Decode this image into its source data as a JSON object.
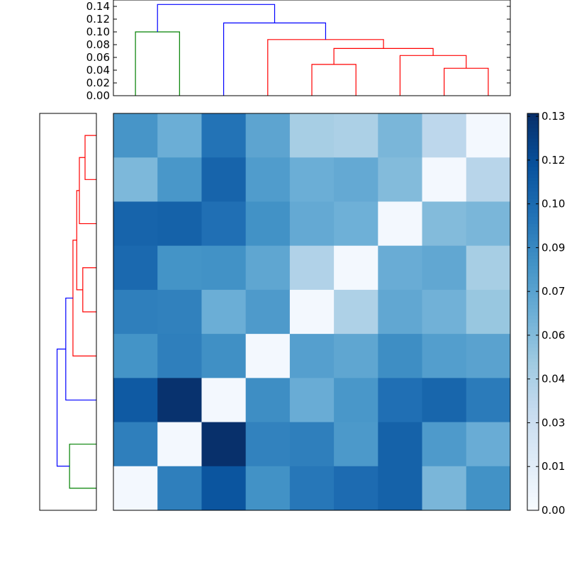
{
  "chart_data": [
    {
      "type": "heatmap",
      "title": "",
      "xlabel": "",
      "ylabel": "",
      "rows": 9,
      "cols": 9,
      "cmap": "Blues",
      "clim": [
        0,
        0.136
      ],
      "values": [
        [
          0.083,
          0.068,
          0.101,
          0.074,
          0.047,
          0.045,
          0.063,
          0.038,
          0.003
        ],
        [
          0.062,
          0.082,
          0.109,
          0.079,
          0.068,
          0.071,
          0.06,
          0.003,
          0.04
        ],
        [
          0.109,
          0.11,
          0.103,
          0.085,
          0.071,
          0.067,
          0.003,
          0.06,
          0.063
        ],
        [
          0.106,
          0.084,
          0.085,
          0.073,
          0.043,
          0.003,
          0.069,
          0.072,
          0.047
        ],
        [
          0.095,
          0.094,
          0.068,
          0.08,
          0.003,
          0.044,
          0.072,
          0.066,
          0.053
        ],
        [
          0.084,
          0.095,
          0.086,
          0.003,
          0.077,
          0.073,
          0.087,
          0.078,
          0.075
        ],
        [
          0.114,
          0.135,
          0.003,
          0.087,
          0.069,
          0.082,
          0.103,
          0.108,
          0.097
        ],
        [
          0.095,
          0.003,
          0.136,
          0.093,
          0.095,
          0.081,
          0.11,
          0.08,
          0.069
        ],
        [
          0.003,
          0.095,
          0.117,
          0.085,
          0.099,
          0.105,
          0.11,
          0.063,
          0.085
        ]
      ]
    },
    {
      "type": "dendrogram",
      "orientation": "top",
      "ylim": [
        0,
        0.15
      ],
      "yticks": [
        "0.00",
        "0.02",
        "0.04",
        "0.06",
        "0.08",
        "0.10",
        "0.12",
        "0.14"
      ],
      "links": [
        {
          "left": 0.5,
          "right": 1.5,
          "height": 0.1,
          "color": "#008000"
        },
        {
          "left": 4.5,
          "right": 5.5,
          "height": 0.049,
          "color": "#ff0000"
        },
        {
          "left": 7.5,
          "right": 8.5,
          "height": 0.043,
          "color": "#ff0000"
        },
        {
          "left": 6.5,
          "right": 8.0,
          "height": 0.063,
          "color": "#ff0000"
        },
        {
          "left": 5.0,
          "right": 7.25,
          "height": 0.074,
          "color": "#ff0000"
        },
        {
          "left": 3.5,
          "right": 6.125,
          "height": 0.088,
          "color": "#ff0000"
        },
        {
          "left": 2.5,
          "right": 4.8125,
          "height": 0.114,
          "color": "#0000ff"
        },
        {
          "left": 1.0,
          "right": 3.65625,
          "height": 0.143,
          "color": "#0000ff"
        }
      ]
    },
    {
      "type": "dendrogram",
      "orientation": "left",
      "xlim": [
        0,
        0.15
      ],
      "links": [
        {
          "left": 0.5,
          "right": 1.5,
          "height": 0.071,
          "color": "#008000"
        },
        {
          "left": 4.5,
          "right": 5.5,
          "height": 0.036,
          "color": "#ff0000"
        },
        {
          "left": 7.5,
          "right": 8.5,
          "height": 0.03,
          "color": "#ff0000"
        },
        {
          "left": 6.5,
          "right": 8.0,
          "height": 0.045,
          "color": "#ff0000"
        },
        {
          "left": 5.0,
          "right": 7.25,
          "height": 0.052,
          "color": "#ff0000"
        },
        {
          "left": 3.5,
          "right": 6.125,
          "height": 0.062,
          "color": "#ff0000"
        },
        {
          "left": 2.5,
          "right": 4.8125,
          "height": 0.081,
          "color": "#0000ff"
        },
        {
          "left": 1.0,
          "right": 3.65625,
          "height": 0.104,
          "color": "#0000ff"
        }
      ]
    },
    {
      "type": "colorbar",
      "ylim": [
        0,
        0.136
      ],
      "tick_labels": [
        "0.00",
        "0.01",
        "0.03",
        "0.04",
        "0.06",
        "0.07",
        "0.09",
        "0.10",
        "0.12",
        "0.13"
      ],
      "tick_values": [
        0.0,
        0.015,
        0.03,
        0.045,
        0.06,
        0.075,
        0.09,
        0.105,
        0.12,
        0.135
      ]
    }
  ],
  "colors": {
    "cmap_stops": [
      "#f7fbff",
      "#deebf7",
      "#c6dbef",
      "#9ecae1",
      "#6baed6",
      "#4292c6",
      "#2171b5",
      "#08519c",
      "#08306b"
    ],
    "cluster_green": "#008000",
    "cluster_red": "#ff0000",
    "cluster_blue": "#0000ff"
  }
}
